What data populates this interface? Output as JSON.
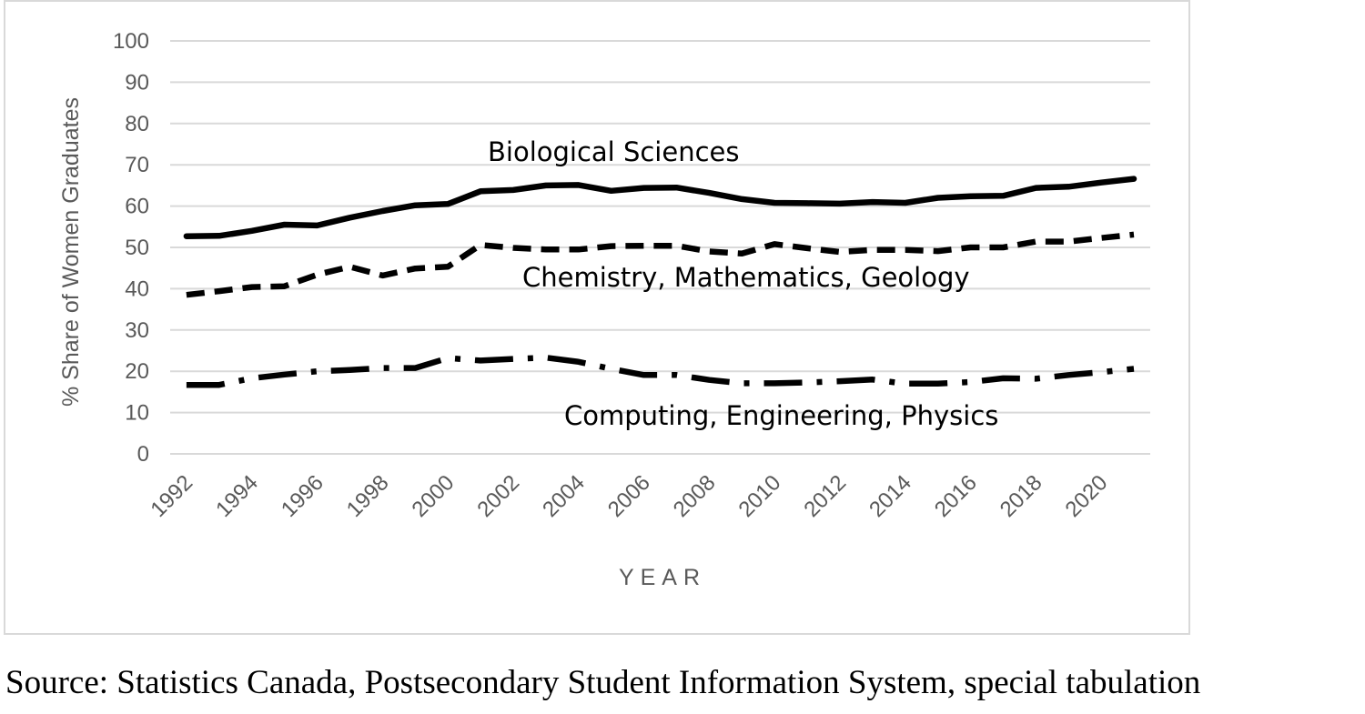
{
  "chart_data": {
    "type": "line",
    "title": "",
    "xlabel": "YEAR",
    "ylabel": "% Share of Women Graduates",
    "ylim": [
      0,
      100
    ],
    "yticks": [
      "0",
      "10",
      "20",
      "30",
      "40",
      "50",
      "60",
      "70",
      "80",
      "90",
      "100"
    ],
    "xticks": [
      "1992",
      "1994",
      "1996",
      "1998",
      "2000",
      "2002",
      "2004",
      "2006",
      "2008",
      "2010",
      "2012",
      "2014",
      "2016",
      "2018",
      "2020"
    ],
    "grid": true,
    "x": [
      1992,
      1993,
      1994,
      1995,
      1996,
      1997,
      1998,
      1999,
      2000,
      2001,
      2002,
      2003,
      2004,
      2005,
      2006,
      2007,
      2008,
      2009,
      2010,
      2011,
      2012,
      2013,
      2014,
      2015,
      2016,
      2017,
      2018,
      2019,
      2020,
      2021
    ],
    "series": [
      {
        "name": "Biological Sciences",
        "line_style": "solid",
        "values": [
          52.7,
          52.8,
          54.0,
          55.5,
          55.3,
          57.2,
          58.8,
          60.2,
          60.5,
          63.6,
          63.9,
          65.0,
          65.1,
          63.7,
          64.4,
          64.5,
          63.2,
          61.7,
          60.8,
          60.7,
          60.6,
          61.0,
          60.8,
          62.0,
          62.4,
          62.5,
          64.4,
          64.7,
          65.7,
          66.6
        ]
      },
      {
        "name": "Chemistry, Mathematics, Geology",
        "line_style": "dashed",
        "values": [
          38.5,
          39.4,
          40.4,
          40.6,
          43.4,
          45.3,
          43.2,
          44.9,
          45.3,
          50.6,
          49.9,
          49.5,
          49.5,
          50.3,
          50.4,
          50.4,
          49.0,
          48.5,
          50.8,
          49.8,
          48.9,
          49.4,
          49.4,
          49.1,
          50.0,
          50.0,
          51.4,
          51.4,
          52.3,
          53.1
        ]
      },
      {
        "name": "Computing, Engineering, Physics",
        "line_style": "dash-dot",
        "values": [
          16.7,
          16.7,
          18.3,
          19.2,
          20.0,
          20.3,
          20.8,
          20.8,
          23.2,
          22.6,
          23.0,
          23.3,
          22.3,
          20.6,
          19.1,
          19.1,
          17.9,
          17.1,
          17.1,
          17.3,
          17.6,
          18.0,
          17.0,
          17.0,
          17.4,
          18.3,
          18.2,
          19.1,
          19.8,
          20.6
        ]
      }
    ]
  },
  "source_note": "Source: Statistics Canada, Postsecondary Student Information System, special tabulation",
  "colors": {
    "line": "#000000",
    "tick": "#595959",
    "grid": "#d9d9d9",
    "frame": "#d9d9d9"
  }
}
